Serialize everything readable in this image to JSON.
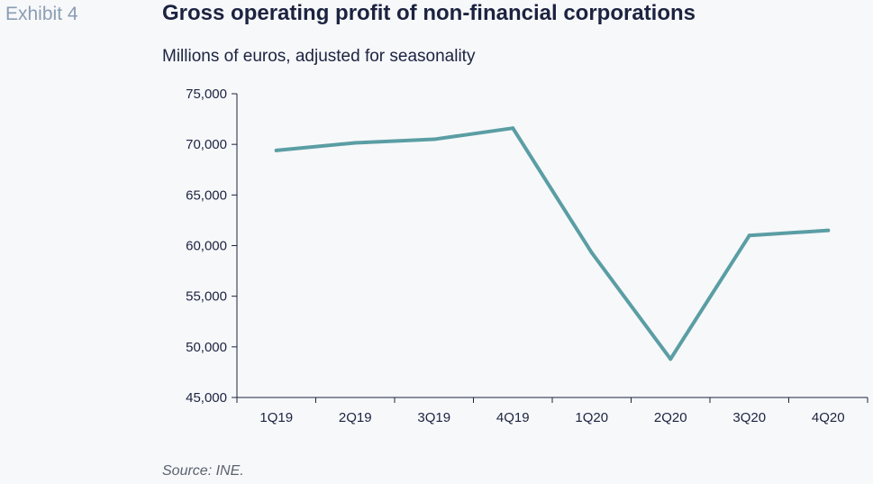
{
  "header": {
    "exhibit": "Exhibit 4",
    "title": "Gross operating profit of non-financial corporations",
    "subtitle": "Millions of euros, adjusted for seasonality"
  },
  "footer": {
    "source": "Source: INE."
  },
  "chart_data": {
    "type": "line",
    "title": "Gross operating profit of non-financial corporations",
    "subtitle": "Millions of euros, adjusted for seasonality",
    "xlabel": "",
    "ylabel": "",
    "categories": [
      "1Q19",
      "2Q19",
      "3Q19",
      "4Q19",
      "1Q20",
      "2Q20",
      "3Q20",
      "4Q20"
    ],
    "series": [
      {
        "values": [
          69400,
          70150,
          70500,
          71600,
          59300,
          48800,
          61000,
          61500
        ]
      }
    ],
    "ylim": [
      45000,
      75000
    ],
    "yticks": [
      45000,
      50000,
      55000,
      60000,
      65000,
      70000,
      75000
    ],
    "ytick_labels": [
      "45,000",
      "50,000",
      "55,000",
      "60,000",
      "65,000",
      "70,000",
      "75,000"
    ],
    "grid": false,
    "legend": "none",
    "colors": {
      "line": "#5a9ea4",
      "axis": "#1c2340"
    }
  }
}
